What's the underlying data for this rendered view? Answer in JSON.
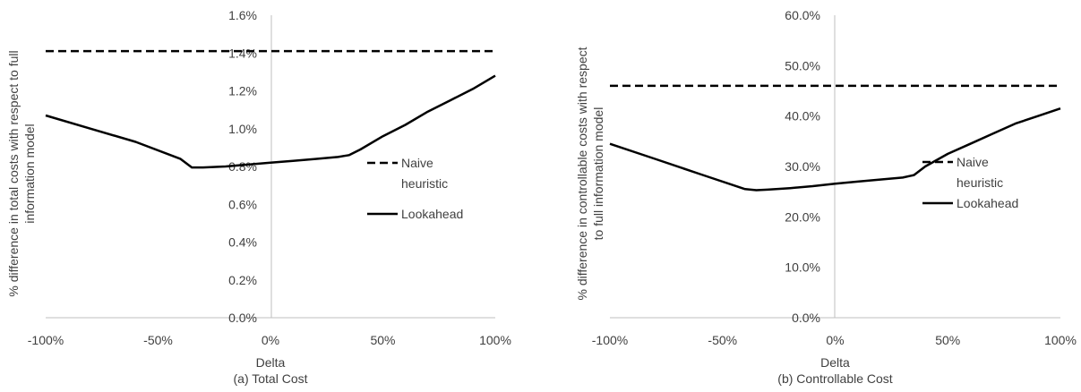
{
  "chart_data": [
    {
      "type": "line",
      "caption": "(a) Total Cost",
      "xlabel": "Delta",
      "ylabel_lines": [
        "% difference in total costs with respect to full",
        "information model"
      ],
      "x_ticks": [
        "-100%",
        "-50%",
        "0%",
        "50%",
        "100%"
      ],
      "y_ticks": [
        "0.0%",
        "0.2%",
        "0.4%",
        "0.6%",
        "0.8%",
        "1.0%",
        "1.2%",
        "1.4%",
        "1.6%"
      ],
      "xlim": [
        -100,
        100
      ],
      "ylim": [
        0,
        1.6
      ],
      "legend_position": "right",
      "series": [
        {
          "name_lines": [
            "Naive",
            "heuristic"
          ],
          "style": "dashed",
          "x": [
            -100,
            100
          ],
          "y": [
            1.41,
            1.41
          ]
        },
        {
          "name_lines": [
            "Lookahead"
          ],
          "style": "solid",
          "x": [
            -100,
            -80,
            -60,
            -40,
            -35,
            -30,
            -20,
            -10,
            0,
            10,
            20,
            30,
            35,
            40,
            50,
            60,
            70,
            80,
            90,
            100
          ],
          "y": [
            1.07,
            1.0,
            0.93,
            0.84,
            0.795,
            0.795,
            0.8,
            0.81,
            0.82,
            0.83,
            0.84,
            0.85,
            0.86,
            0.89,
            0.96,
            1.02,
            1.09,
            1.15,
            1.21,
            1.28
          ]
        }
      ]
    },
    {
      "type": "line",
      "caption": "(b) Controllable Cost",
      "xlabel": "Delta",
      "ylabel_lines": [
        "% difference in controllable costs with respect",
        "to full information model"
      ],
      "x_ticks": [
        "-100%",
        "-50%",
        "0%",
        "50%",
        "100%"
      ],
      "y_ticks": [
        "0.0%",
        "10.0%",
        "20.0%",
        "30.0%",
        "40.0%",
        "50.0%",
        "60.0%"
      ],
      "xlim": [
        -100,
        100
      ],
      "ylim": [
        0,
        60
      ],
      "legend_position": "right",
      "series": [
        {
          "name_lines": [
            "Naive",
            "heuristic"
          ],
          "style": "dashed",
          "x": [
            -100,
            100
          ],
          "y": [
            46,
            46
          ]
        },
        {
          "name_lines": [
            "Lookahead"
          ],
          "style": "solid",
          "x": [
            -100,
            -80,
            -60,
            -40,
            -35,
            -30,
            -20,
            -10,
            0,
            10,
            20,
            30,
            35,
            40,
            50,
            60,
            70,
            80,
            90,
            100
          ],
          "y": [
            34.5,
            31.5,
            28.5,
            25.5,
            25.3,
            25.4,
            25.7,
            26.1,
            26.6,
            27.0,
            27.4,
            27.8,
            28.3,
            30.0,
            32.5,
            34.5,
            36.5,
            38.5,
            40.0,
            41.5
          ]
        }
      ]
    }
  ]
}
